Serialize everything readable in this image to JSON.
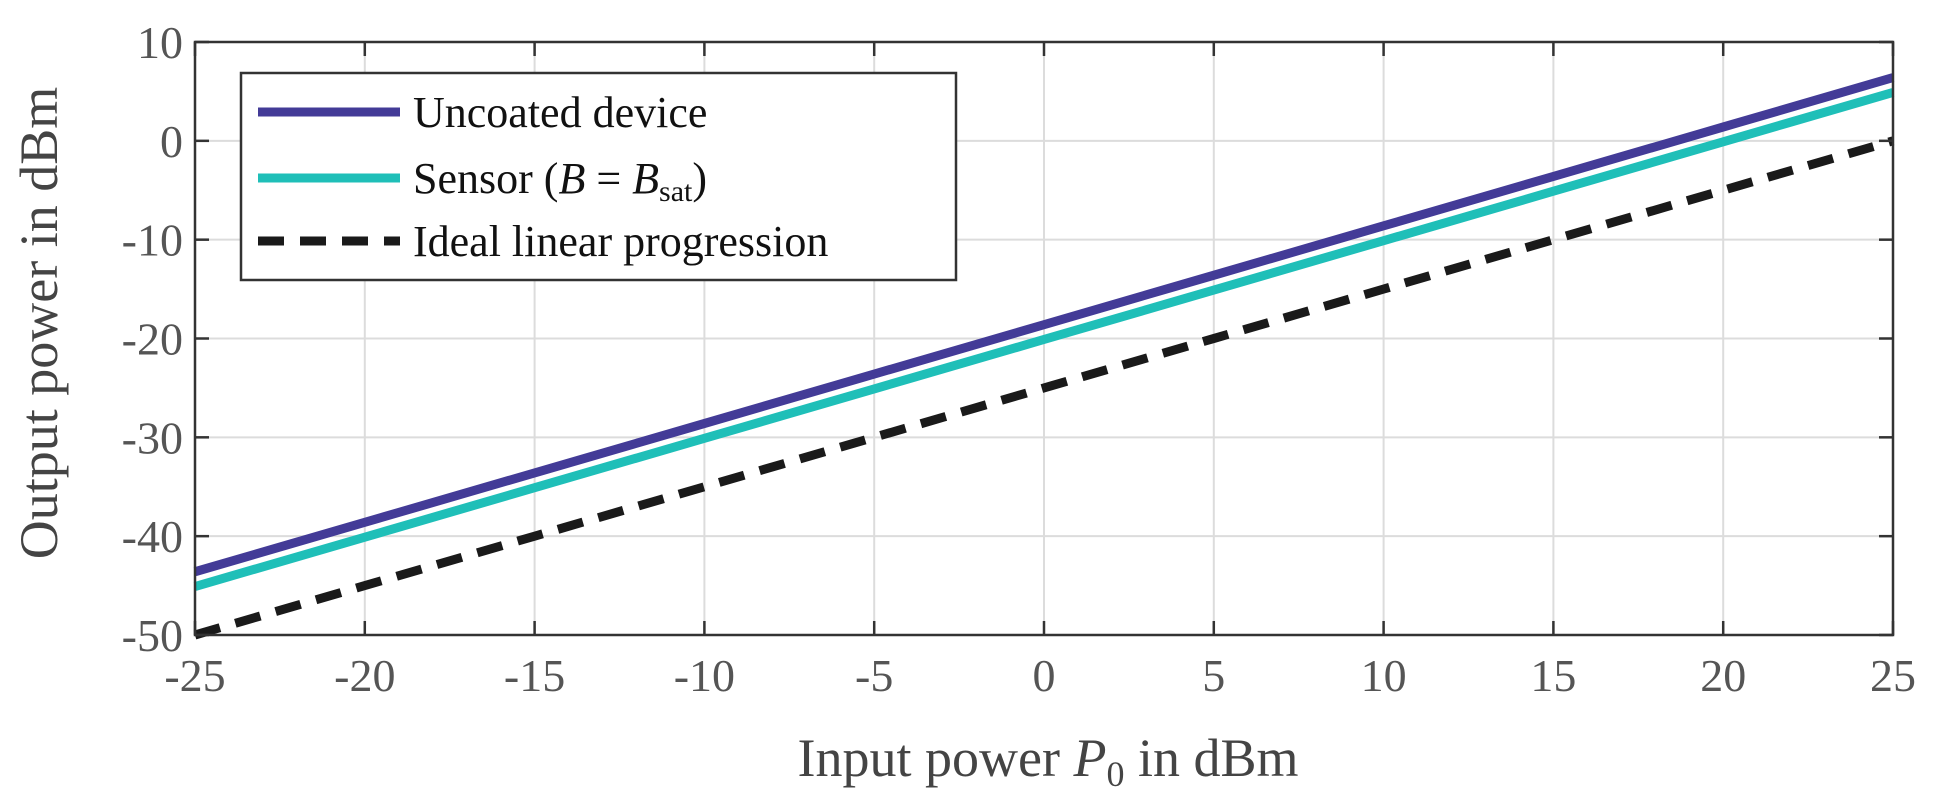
{
  "chart_data": {
    "type": "line",
    "xlabel": {
      "prefix": "Input power ",
      "symbol": "P",
      "subscript": "0",
      "suffix": " in dBm"
    },
    "ylabel": "Output power in dBm",
    "xlim": [
      -25,
      25
    ],
    "ylim": [
      -50,
      10
    ],
    "xticks": [
      -25,
      -20,
      -15,
      -10,
      -5,
      0,
      5,
      10,
      15,
      20,
      25
    ],
    "yticks": [
      -50,
      -40,
      -30,
      -20,
      -10,
      0,
      10
    ],
    "grid": true,
    "legend_position": "top-left",
    "series": [
      {
        "name": "Uncoated device",
        "color": "#433b97",
        "style": "solid",
        "x": [
          -25,
          -20,
          -15,
          -10,
          -5,
          0,
          5,
          10,
          15,
          20,
          25
        ],
        "y": [
          -43.6,
          -38.6,
          -33.6,
          -28.6,
          -23.6,
          -18.6,
          -13.6,
          -8.6,
          -3.6,
          1.4,
          6.4
        ]
      },
      {
        "name": "Sensor (B = B_sat)",
        "legend_parts": {
          "prefix": "Sensor (",
          "symbol": "B",
          "eq": " = ",
          "symbol2": "B",
          "subscript": "sat",
          "suffix": ")"
        },
        "color": "#1fbfb8",
        "style": "solid",
        "x": [
          -25,
          -20,
          -15,
          -10,
          -5,
          0,
          5,
          10,
          15,
          20,
          25
        ],
        "y": [
          -45.1,
          -40.1,
          -35.1,
          -30.1,
          -25.1,
          -20.1,
          -15.1,
          -10.1,
          -5.1,
          -0.1,
          4.9
        ]
      },
      {
        "name": "Ideal linear progression",
        "color": "#1a1a1a",
        "style": "dashed",
        "x": [
          -25,
          -20,
          -15,
          -10,
          -5,
          0,
          5,
          10,
          15,
          20,
          25
        ],
        "y": [
          -50,
          -45,
          -40,
          -35,
          -30,
          -25,
          -20,
          -15,
          -10,
          -5,
          0
        ]
      }
    ]
  }
}
